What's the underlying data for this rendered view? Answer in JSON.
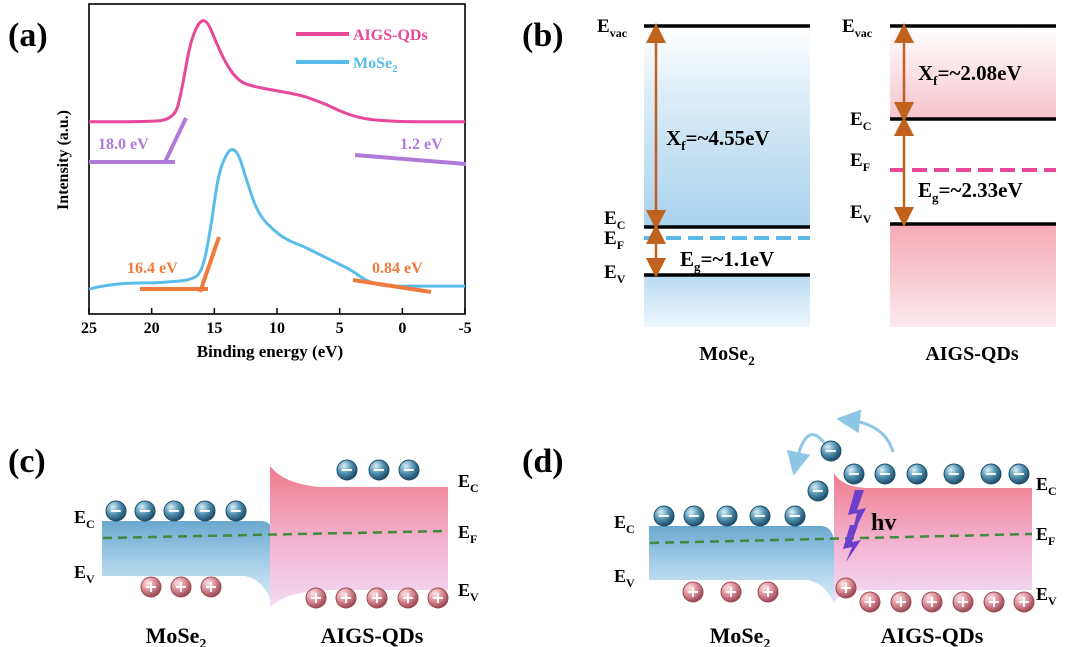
{
  "panel_labels": {
    "a": "(a)",
    "b": "(b)",
    "c": "(c)",
    "d": "(d)"
  },
  "colors": {
    "aigs": "#e8489a",
    "mose2": "#5bbcec",
    "fit_purple": "#b07ad8",
    "fit_orange": "#ef7a3e",
    "arrow": "#c0621e",
    "fermi_green": "#3f8a3c",
    "hv_purple": "#6c3fc9"
  },
  "chart_data": {
    "type": "line",
    "xlabel": "Binding energy (eV)",
    "ylabel": "Intensity (a.u.)",
    "x_ticks": [
      "25",
      "20",
      "15",
      "10",
      "5",
      "0",
      "-5"
    ],
    "xlim": [
      25,
      -5
    ],
    "series": [
      {
        "name": "AIGS-QDs",
        "points": [
          [
            25,
            0.62
          ],
          [
            21,
            0.62
          ],
          [
            18.2,
            0.625
          ],
          [
            17.6,
            0.72
          ],
          [
            17,
            0.86
          ],
          [
            16.5,
            0.92
          ],
          [
            16,
            0.95
          ],
          [
            15.5,
            0.94
          ],
          [
            15,
            0.89
          ],
          [
            14,
            0.8
          ],
          [
            13,
            0.75
          ],
          [
            12,
            0.735
          ],
          [
            10,
            0.72
          ],
          [
            8,
            0.705
          ],
          [
            7,
            0.69
          ],
          [
            6,
            0.675
          ],
          [
            5,
            0.655
          ],
          [
            4,
            0.64
          ],
          [
            3,
            0.63
          ],
          [
            2,
            0.625
          ],
          [
            0,
            0.62
          ],
          [
            -5,
            0.62
          ]
        ]
      },
      {
        "name": "MoSe2",
        "points": [
          [
            25,
            0.08
          ],
          [
            24,
            0.09
          ],
          [
            22,
            0.1
          ],
          [
            20,
            0.1
          ],
          [
            18,
            0.105
          ],
          [
            17,
            0.11
          ],
          [
            16,
            0.13
          ],
          [
            15.3,
            0.27
          ],
          [
            14.7,
            0.45
          ],
          [
            14,
            0.52
          ],
          [
            13.5,
            0.535
          ],
          [
            13,
            0.51
          ],
          [
            12.5,
            0.44
          ],
          [
            11.5,
            0.32
          ],
          [
            10,
            0.26
          ],
          [
            9,
            0.235
          ],
          [
            8,
            0.22
          ],
          [
            7,
            0.2
          ],
          [
            6,
            0.18
          ],
          [
            5,
            0.16
          ],
          [
            4,
            0.14
          ],
          [
            3,
            0.11
          ],
          [
            2,
            0.095
          ],
          [
            1,
            0.09
          ],
          [
            0,
            0.09
          ],
          [
            -5,
            0.09
          ]
        ]
      }
    ],
    "annotations": [
      {
        "text": "18.0 eV",
        "color": "fit_purple"
      },
      {
        "text": "1.2 eV",
        "color": "fit_purple"
      },
      {
        "text": "16.4 eV",
        "color": "fit_orange"
      },
      {
        "text": "0.84 eV",
        "color": "fit_orange"
      }
    ]
  },
  "legend": {
    "aigs_label": "AIGS-QDs",
    "mose2_main": "MoSe",
    "mose2_sub": "2"
  },
  "band_diagram": {
    "mose2_title_main": "MoSe",
    "mose2_title_sub": "2",
    "aigs_title": "AIGS-QDs",
    "mose2_xf": "X",
    "mose2_xf_sub": "f",
    "mose2_xf_val": "=~4.55eV",
    "mose2_eg": "E",
    "mose2_eg_sub": "g",
    "mose2_eg_val": "=~1.1eV",
    "aigs_xf": "X",
    "aigs_xf_sub": "f",
    "aigs_xf_val": "=~2.08eV",
    "aigs_eg": "E",
    "aigs_eg_sub": "g",
    "aigs_eg_val": "=~2.33eV",
    "levels": {
      "E": "E",
      "vac": "vac",
      "C": "C",
      "F": "F",
      "V": "V"
    }
  },
  "junction": {
    "left_title_main": "MoSe",
    "left_title_sub": "2",
    "right_title": "AIGS-QDs",
    "hv": "hv",
    "electron_sign": "−",
    "hole_sign": "+"
  }
}
